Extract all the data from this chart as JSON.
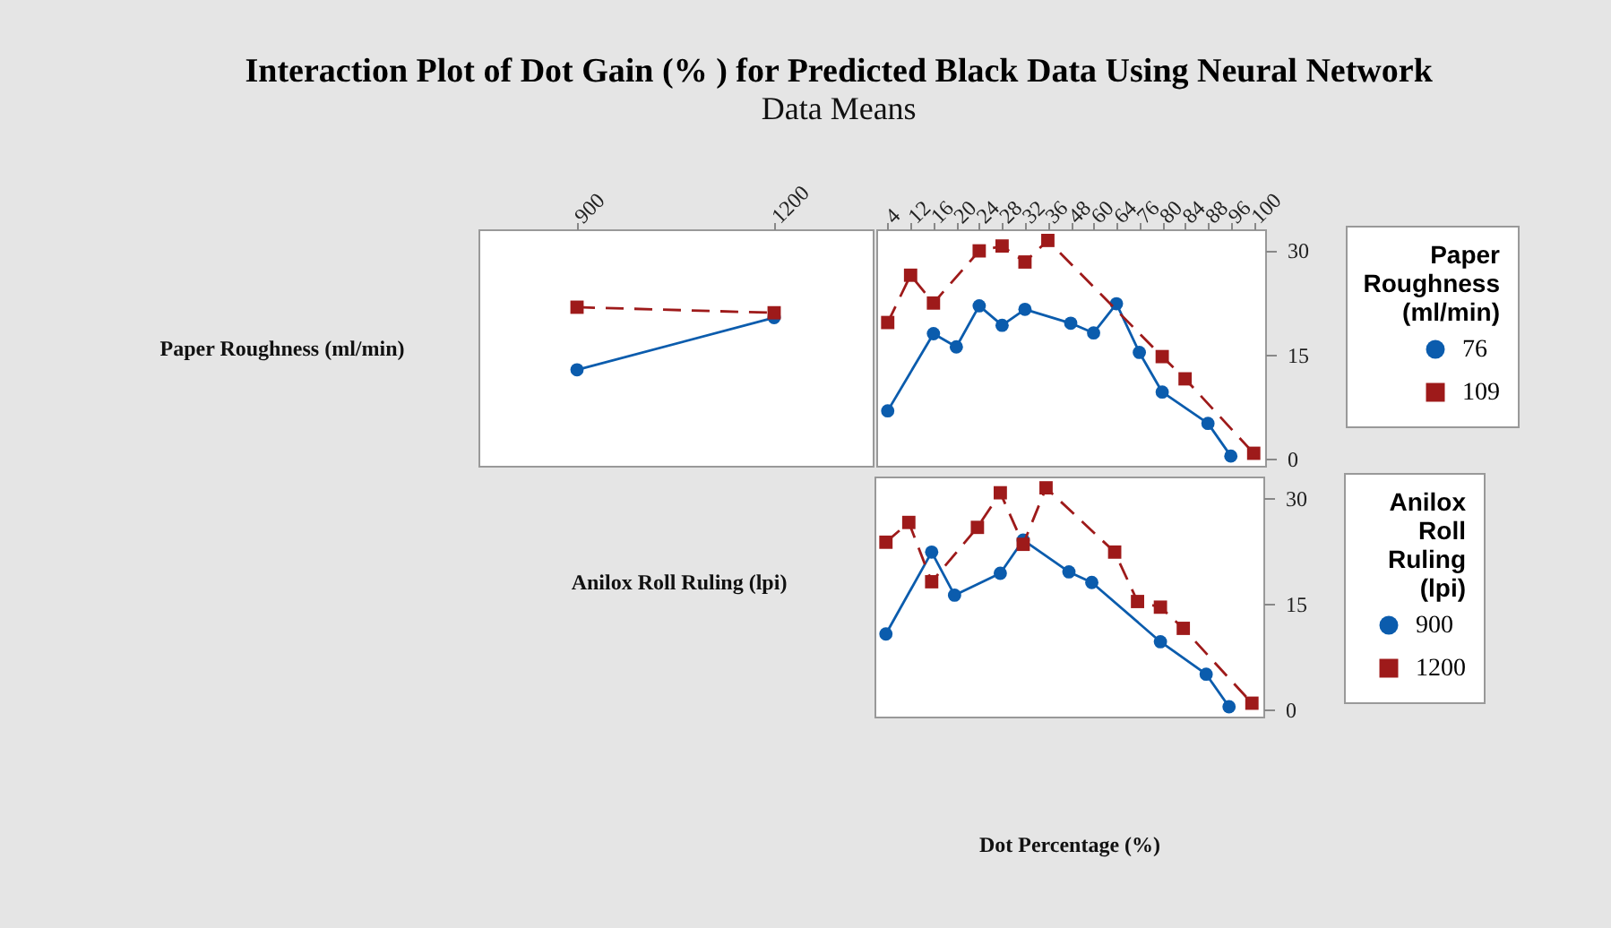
{
  "chart_data": [
    {
      "type": "line",
      "title": "Interaction Plot of Dot Gain (% ) for Predicted Black Data Using Neural Network",
      "subtitle": "Data Means",
      "ylabel": "Paper Roughness (ml/min)",
      "categories": [
        "900",
        "1200"
      ],
      "ylim": [
        -1,
        33
      ],
      "yticks": [
        0,
        15,
        30
      ],
      "tick_labels": "x",
      "series": [
        {
          "color": "#0b5cad",
          "marker": "circle",
          "line_style": "solid",
          "values": [
            12.8,
            20.3
          ]
        },
        {
          "color": "#9e1a1a",
          "marker": "square",
          "line_style": "dashed",
          "values": [
            21.8,
            21.0
          ]
        }
      ]
    },
    {
      "type": "line",
      "legend_title": "Paper Roughness (ml/min)",
      "legend": "right",
      "categories": [
        "4",
        "12",
        "16",
        "20",
        "24",
        "28",
        "32",
        "36",
        "48",
        "60",
        "64",
        "76",
        "80",
        "84",
        "88",
        "96",
        "100"
      ],
      "ylim": [
        -1,
        33
      ],
      "yticks": [
        0,
        15,
        30
      ],
      "series": [
        {
          "name": "76",
          "color": "#0b5cad",
          "marker": "circle",
          "line_style": "solid",
          "values": [
            6.9,
            null,
            18.0,
            16.1,
            22.0,
            19.2,
            21.5,
            null,
            19.5,
            18.1,
            22.3,
            15.3,
            9.6,
            null,
            5.1,
            0.4,
            null
          ]
        },
        {
          "name": "109",
          "color": "#9e1a1a",
          "marker": "square",
          "line_style": "dashed",
          "values": [
            19.6,
            26.4,
            22.4,
            null,
            29.9,
            30.6,
            28.3,
            31.4,
            null,
            null,
            null,
            null,
            14.7,
            11.5,
            null,
            null,
            0.8
          ]
        }
      ]
    },
    {
      "type": "line",
      "legend_title": "Anilox Roll Ruling (lpi)",
      "legend": "right",
      "ylabel": "Anilox Roll Ruling (lpi)",
      "xlabel": "Dot Percentage (%)",
      "tick_labels": "y",
      "categories": [
        "4",
        "12",
        "16",
        "20",
        "24",
        "28",
        "32",
        "36",
        "48",
        "60",
        "64",
        "76",
        "80",
        "84",
        "88",
        "96",
        "100"
      ],
      "ylim": [
        -1,
        33
      ],
      "yticks": [
        0,
        15,
        30
      ],
      "series": [
        {
          "name": "900",
          "color": "#0b5cad",
          "marker": "circle",
          "line_style": "solid",
          "values": [
            10.7,
            null,
            22.3,
            16.2,
            null,
            19.3,
            24.0,
            null,
            19.5,
            18.0,
            null,
            null,
            9.6,
            null,
            5.0,
            0.4,
            null
          ]
        },
        {
          "name": "1200",
          "color": "#9e1a1a",
          "marker": "square",
          "line_style": "dashed",
          "values": [
            23.7,
            26.5,
            18.1,
            null,
            25.8,
            30.7,
            23.4,
            31.4,
            null,
            null,
            22.3,
            15.3,
            14.5,
            11.5,
            null,
            null,
            0.9
          ]
        }
      ]
    }
  ]
}
